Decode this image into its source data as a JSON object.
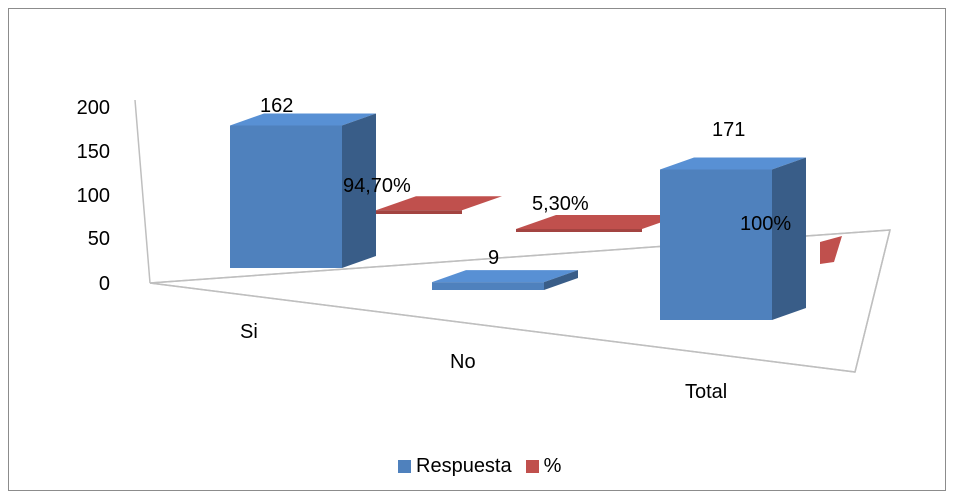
{
  "chart_data": {
    "type": "bar",
    "categories": [
      "Si",
      "No",
      "Total"
    ],
    "ylim": [
      0,
      200
    ],
    "yticks": [
      "0",
      "50",
      "100",
      "150",
      "200"
    ],
    "series": [
      {
        "name": "Respuesta",
        "values": [
          162,
          9,
          171
        ],
        "labels": [
          "162",
          "9",
          "171"
        ],
        "color": "#4f81bd"
      },
      {
        "name": "%",
        "values": [
          94.7,
          5.3,
          100
        ],
        "labels": [
          "94,70%",
          "5,30%",
          "100%"
        ],
        "color": "#c0504d"
      }
    ],
    "legend_position": "bottom",
    "grid": false
  }
}
